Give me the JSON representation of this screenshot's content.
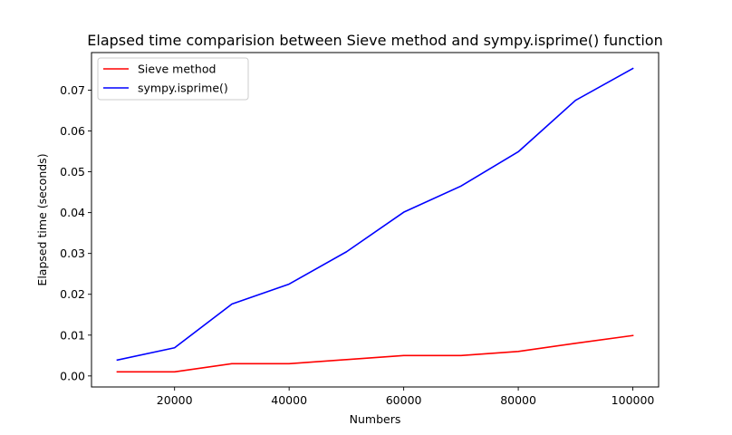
{
  "chart_data": {
    "type": "line",
    "title": "Elapsed time comparision between Sieve method and sympy.isprime() function",
    "xlabel": "Numbers",
    "ylabel": "Elapsed time (seconds)",
    "x": [
      10000,
      20000,
      30000,
      40000,
      50000,
      60000,
      70000,
      80000,
      90000,
      100000
    ],
    "xlim": [
      5500,
      104500
    ],
    "ylim": [
      -0.0027,
      0.0792
    ],
    "xticks": [
      20000,
      40000,
      60000,
      80000,
      100000
    ],
    "xtick_labels": [
      "20000",
      "40000",
      "60000",
      "80000",
      "100000"
    ],
    "yticks": [
      0.0,
      0.01,
      0.02,
      0.03,
      0.04,
      0.05,
      0.06,
      0.07
    ],
    "ytick_labels": [
      "0.00",
      "0.01",
      "0.02",
      "0.03",
      "0.04",
      "0.05",
      "0.06",
      "0.07"
    ],
    "grid": false,
    "legend_position": "upper-left",
    "series": [
      {
        "name": "Sieve method",
        "color": "#ff0000",
        "values": [
          0.001,
          0.001,
          0.003,
          0.003,
          0.004,
          0.005,
          0.005,
          0.006,
          0.008,
          0.0099
        ]
      },
      {
        "name": "sympy.isprime()",
        "color": "#0000ff",
        "values": [
          0.0039,
          0.0069,
          0.0176,
          0.0225,
          0.0304,
          0.0401,
          0.0465,
          0.0549,
          0.0675,
          0.0753
        ]
      }
    ]
  }
}
